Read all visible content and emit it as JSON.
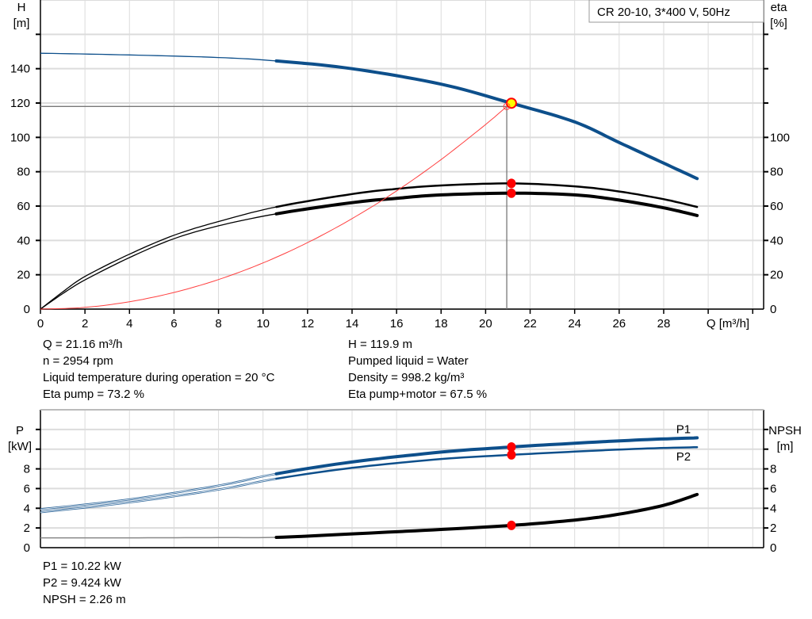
{
  "chart_data": [
    {
      "type": "line",
      "title": "CR 20-10, 3*400 V, 50Hz",
      "xlabel": "Q [m³/h]",
      "ylabel": "H\n[m]",
      "ylabel_left_lines": [
        "H",
        "[m]"
      ],
      "ylabel_right_lines": [
        "eta",
        "[%]"
      ],
      "xlim": [
        0,
        32
      ],
      "ylim": [
        0,
        180
      ],
      "y2lim": [
        0,
        180
      ],
      "xticks": [
        0,
        2,
        4,
        6,
        8,
        10,
        12,
        14,
        16,
        18,
        20,
        22,
        24,
        26,
        28
      ],
      "yticks": [
        0,
        20,
        40,
        60,
        80,
        100,
        120,
        140
      ],
      "y2ticks": [
        0,
        20,
        40,
        60,
        80,
        100
      ],
      "grid": true,
      "legend": "top-right",
      "colors": {
        "head": "#0d4f8b",
        "eta": "#000000",
        "system": "#ff4040",
        "marker": "#ff0000",
        "duty_marker_fill": "#ffff00"
      },
      "thin_until_q": 10.6,
      "series": [
        {
          "key": "H",
          "axis": "left",
          "color": "#0d4f8b",
          "x": [
            0,
            4,
            8,
            10.6,
            14,
            18,
            21.16,
            24,
            26,
            28,
            29.5
          ],
          "values": [
            149,
            148,
            146.5,
            144.5,
            140,
            131,
            119.9,
            109,
            97,
            85,
            76
          ]
        },
        {
          "key": "eta_pump",
          "axis": "right",
          "color": "#000000",
          "x": [
            0,
            1,
            2,
            4,
            6,
            8,
            10.6,
            14,
            16,
            18,
            21.16,
            24,
            26,
            28,
            29.5
          ],
          "values": [
            0,
            10,
            19,
            32,
            43,
            51,
            59.5,
            67,
            70,
            72,
            73.2,
            71.5,
            68.5,
            64,
            59.5
          ]
        },
        {
          "key": "eta_total",
          "axis": "right",
          "color": "#000000",
          "x": [
            0,
            1,
            2,
            4,
            6,
            8,
            10.6,
            14,
            16,
            18,
            21.16,
            24,
            26,
            28,
            29.5
          ],
          "values": [
            0,
            9,
            17,
            30,
            41,
            48.5,
            55.5,
            62,
            64.5,
            66.5,
            67.5,
            66.5,
            63.5,
            59,
            54.5
          ]
        },
        {
          "key": "system",
          "axis": "left",
          "color": "#ff4040",
          "x": [
            0,
            2,
            4,
            6,
            8,
            10,
            12,
            14,
            16,
            18,
            20,
            20.95
          ],
          "values": [
            0,
            1,
            4.3,
            9.7,
            17.2,
            26.9,
            38.7,
            52.7,
            68.8,
            87.1,
            107.5,
            118
          ]
        }
      ],
      "duty_point": {
        "Q": 21.16,
        "H": 119.9,
        "eta_pump": 73.2,
        "eta_total": 67.5
      },
      "reference_lines": {
        "Q": 20.95,
        "H": 118
      }
    },
    {
      "type": "line",
      "ylabel_left_lines": [
        "P",
        "[kW]"
      ],
      "ylabel_right_lines": [
        "NPSH",
        "[m]"
      ],
      "xlim": [
        0,
        32
      ],
      "ylim": [
        0,
        14
      ],
      "y2lim": [
        0,
        14
      ],
      "yticks": [
        0,
        2,
        4,
        6,
        8
      ],
      "y2ticks": [
        0,
        2,
        4,
        6,
        8
      ],
      "grid": true,
      "series": [
        {
          "key": "P1",
          "name": "P1",
          "axis": "left",
          "color": "#0d4f8b",
          "x": [
            0,
            4,
            8,
            10.6,
            14,
            18,
            21.16,
            24,
            27,
            29.5
          ],
          "values": [
            3.9,
            4.9,
            6.3,
            7.5,
            8.7,
            9.7,
            10.22,
            10.6,
            10.95,
            11.15
          ]
        },
        {
          "key": "P2",
          "name": "P2",
          "axis": "left",
          "color": "#0d4f8b",
          "x": [
            0,
            4,
            8,
            10.6,
            14,
            18,
            21.16,
            24,
            27,
            29.5
          ],
          "values": [
            3.6,
            4.6,
            5.9,
            7.0,
            8.1,
            9.0,
            9.424,
            9.75,
            10.05,
            10.2
          ]
        },
        {
          "key": "NPSH",
          "axis": "right",
          "color": "#000000",
          "x": [
            0,
            4,
            8,
            10.6,
            14,
            18,
            21.16,
            24,
            26,
            28,
            29.5
          ],
          "values": [
            1.0,
            1.0,
            1.02,
            1.05,
            1.4,
            1.85,
            2.26,
            2.8,
            3.4,
            4.3,
            5.4
          ]
        }
      ],
      "duty_point": {
        "Q": 21.16,
        "P1": 10.22,
        "P2": 9.424,
        "NPSH": 2.26
      }
    }
  ],
  "info_top_left": [
    "Q = 21.16 m³/h",
    "n = 2954 rpm",
    "Liquid temperature during operation = 20 °C",
    "Eta pump = 73.2 %"
  ],
  "info_top_right": [
    "H = 119.9 m",
    "Pumped liquid = Water",
    "Density = 998.2 kg/m³",
    "Eta pump+motor = 67.5 %"
  ],
  "info_bottom": [
    "P1 = 10.22 kW",
    "P2 = 9.424 kW",
    "NPSH = 2.26 m"
  ]
}
